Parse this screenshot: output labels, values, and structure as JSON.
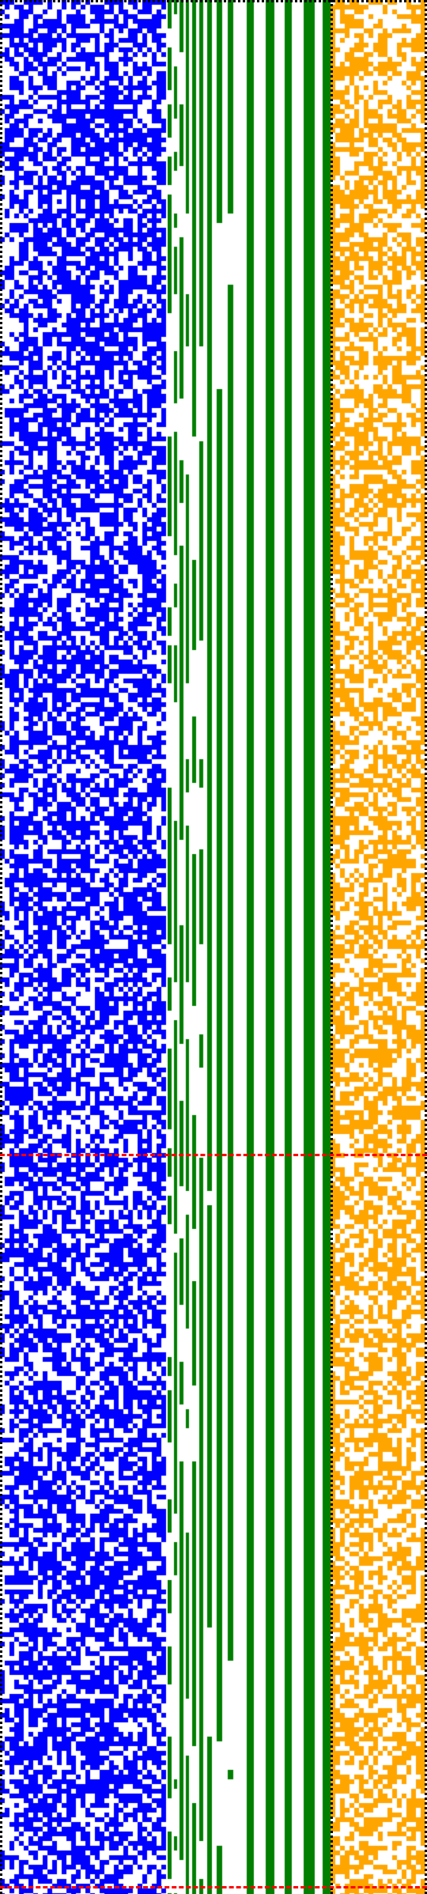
{
  "colors": {
    "background": "#ffffff",
    "blue_cells": "#0000ff",
    "green_bars": "#007f00",
    "orange_cells": "#ffa500",
    "separator_dotted": "#000000",
    "marker_dashed": "#ff0000"
  },
  "figure": {
    "panels": [
      {
        "id": "blue",
        "description_icon": "blue-noise-grid"
      },
      {
        "id": "green",
        "description_icon": "green-staircase-bars"
      },
      {
        "id": "orange",
        "description_icon": "orange-noise-grid"
      }
    ],
    "dashed_markers": [
      {
        "row_fraction": 0.609
      },
      {
        "row_fraction": 0.996
      }
    ],
    "blue_density": 0.62,
    "orange_density": 0.55
  }
}
